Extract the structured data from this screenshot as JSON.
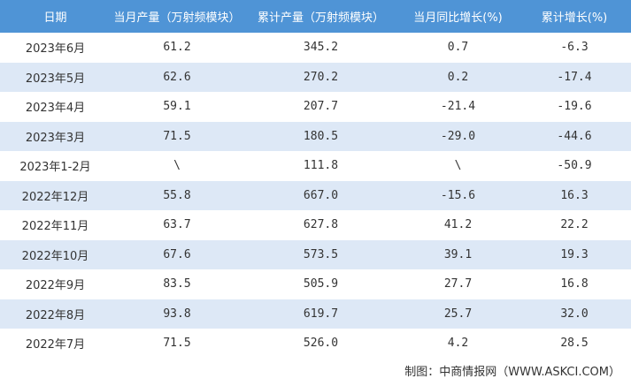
{
  "table": {
    "header": [
      "日期",
      "当月产量（万射频模块）",
      "累计产量（万射频模块）",
      "当月同比增长(%)",
      "累计增长(%)"
    ],
    "rows": [
      [
        "2023年6月",
        "61.2",
        "345.2",
        "0.7",
        "-6.3"
      ],
      [
        "2023年5月",
        "62.6",
        "270.2",
        "0.2",
        "-17.4"
      ],
      [
        "2023年4月",
        "59.1",
        "207.7",
        "-21.4",
        "-19.6"
      ],
      [
        "2023年3月",
        "71.5",
        "180.5",
        "-29.0",
        "-44.6"
      ],
      [
        "2023年1-2月",
        "\\",
        "111.8",
        "\\",
        "-50.9"
      ],
      [
        "2022年12月",
        "55.8",
        "667.0",
        "-15.6",
        "16.3"
      ],
      [
        "2022年11月",
        "63.7",
        "627.8",
        "41.2",
        "22.2"
      ],
      [
        "2022年10月",
        "67.6",
        "573.5",
        "39.1",
        "19.3"
      ],
      [
        "2022年9月",
        "83.5",
        "505.9",
        "27.7",
        "16.8"
      ],
      [
        "2022年8月",
        "93.8",
        "619.7",
        "25.7",
        "32.0"
      ],
      [
        "2022年7月",
        "71.5",
        "526.0",
        "4.2",
        "28.5"
      ]
    ]
  },
  "footer": {
    "source": "制图：中商情报网（WWW.ASKCI.COM）"
  }
}
